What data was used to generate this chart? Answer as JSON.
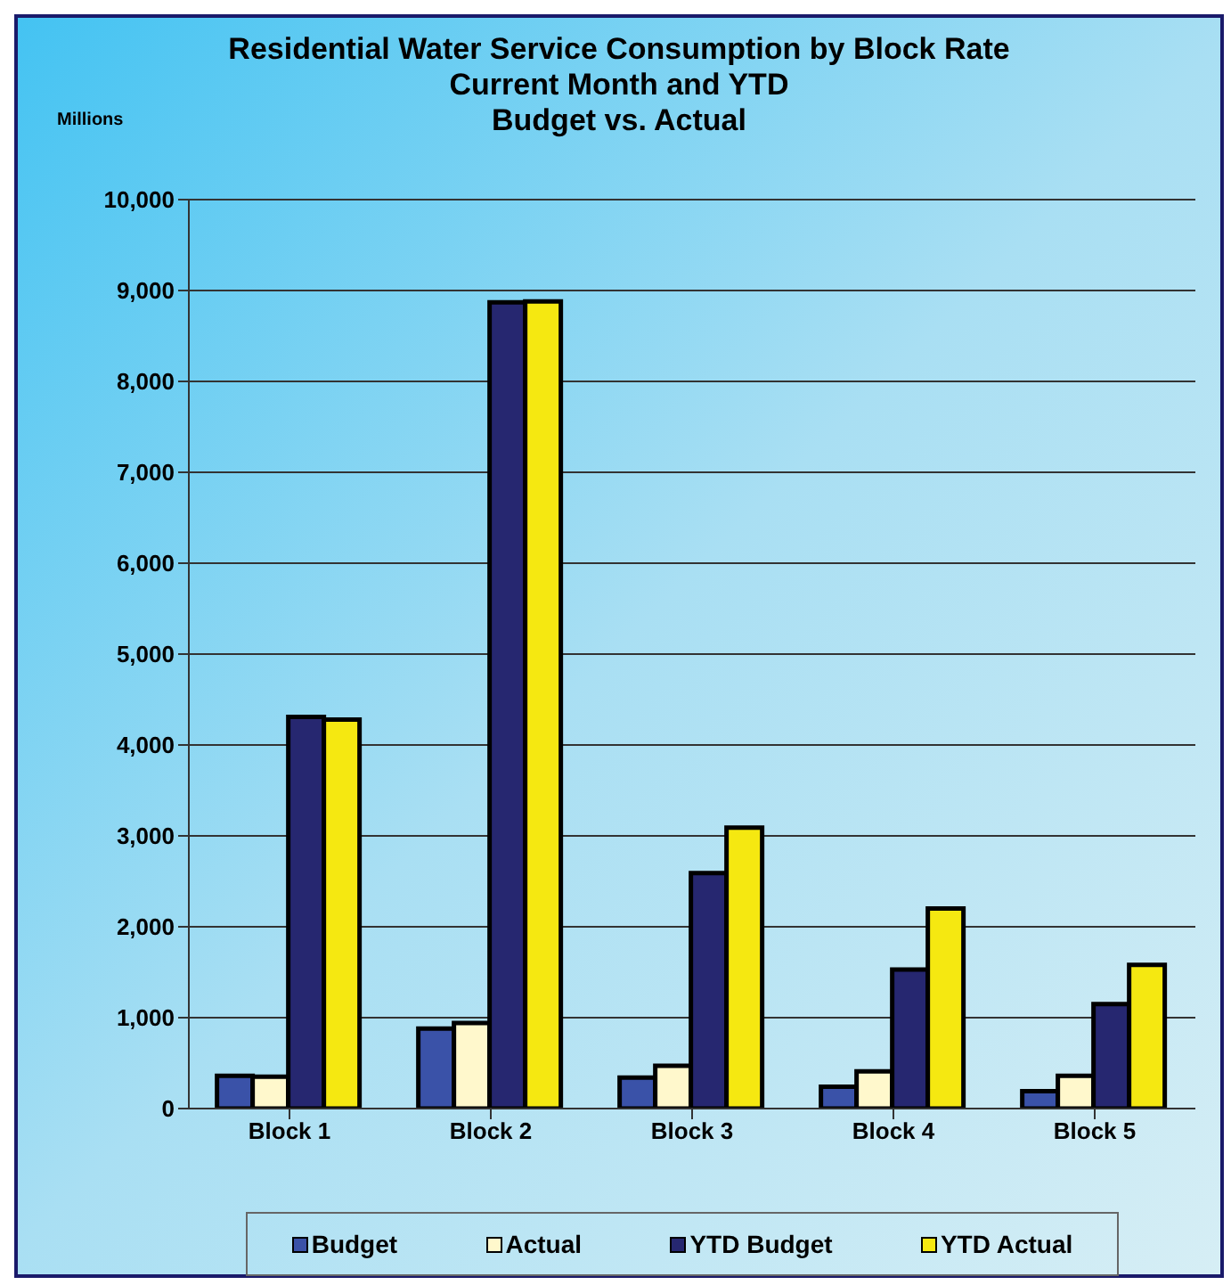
{
  "chart_data": {
    "type": "bar",
    "title": "Residential Water Service Consumption  by Block Rate",
    "subtitle": "Current Month and YTD\nBudget vs. Actual",
    "ylabel": "Millions",
    "categories": [
      "Block 1",
      "Block 2",
      "Block 3",
      "Block 4",
      "Block 5"
    ],
    "series": [
      {
        "name": "Budget",
        "color": "#3a52a8",
        "values": [
          360,
          880,
          340,
          240,
          190
        ]
      },
      {
        "name": "Actual",
        "color": "#fff8cc",
        "values": [
          350,
          940,
          470,
          410,
          360
        ]
      },
      {
        "name": "YTD Budget",
        "color": "#262770",
        "values": [
          4310,
          8870,
          2590,
          1530,
          1150
        ]
      },
      {
        "name": "YTD Actual",
        "color": "#f5e811",
        "values": [
          4280,
          8880,
          3090,
          2200,
          1580
        ]
      }
    ],
    "ylim": [
      0,
      10000
    ],
    "yticks": [
      {
        "value": 0,
        "label": "0"
      },
      {
        "value": 1000,
        "label": "1,000"
      },
      {
        "value": 2000,
        "label": "2,000"
      },
      {
        "value": 3000,
        "label": "3,000"
      },
      {
        "value": 4000,
        "label": "4,000"
      },
      {
        "value": 5000,
        "label": "5,000"
      },
      {
        "value": 6000,
        "label": "6,000"
      },
      {
        "value": 7000,
        "label": "7,000"
      },
      {
        "value": 8000,
        "label": "8,000"
      },
      {
        "value": 9000,
        "label": "9,000"
      },
      {
        "value": 10000,
        "label": "10,000"
      }
    ],
    "grid": "y",
    "legend": "bottom"
  }
}
